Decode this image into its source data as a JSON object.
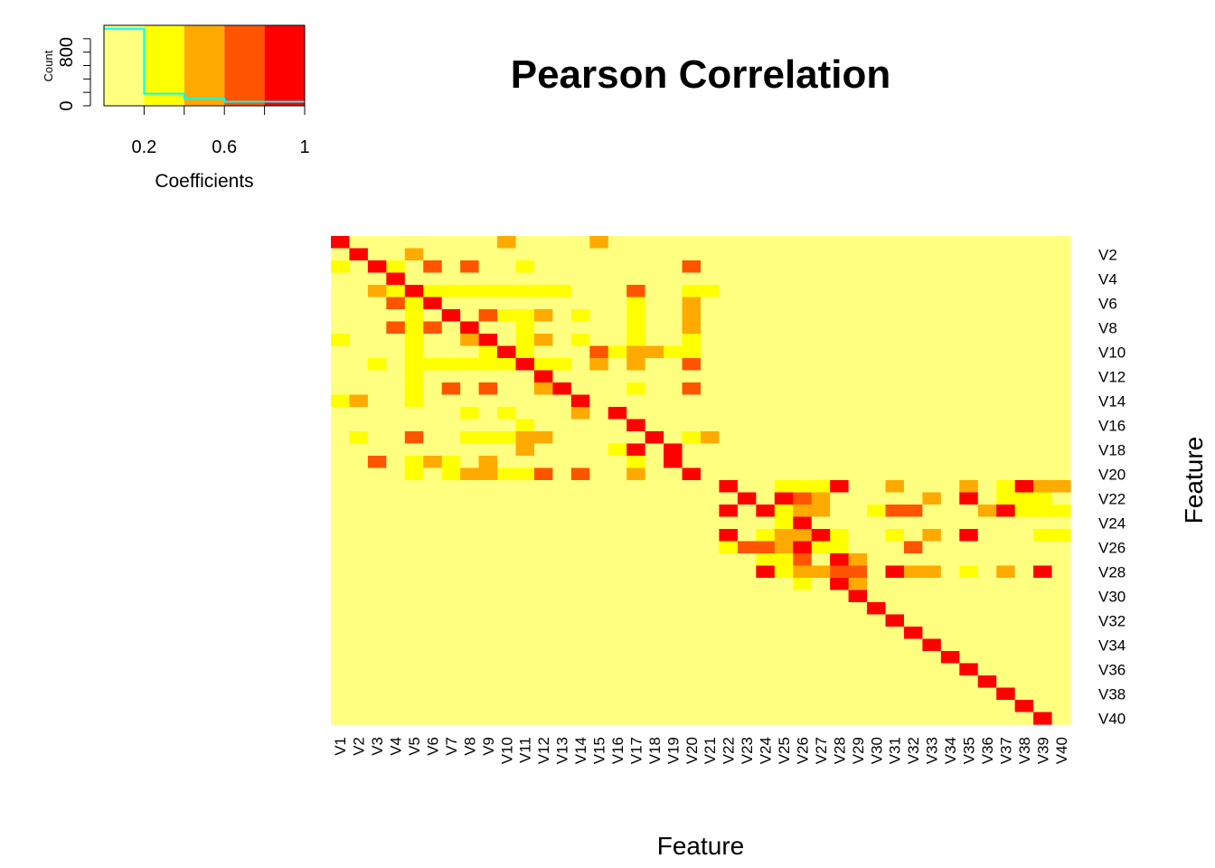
{
  "chart_data": {
    "type": "heatmap",
    "title": "Pearson Correlation",
    "xlabel": "Feature",
    "ylabel": "Feature",
    "rows": [
      "V1",
      "V2",
      "V3",
      "V4",
      "V5",
      "V6",
      "V7",
      "V8",
      "V9",
      "V10",
      "V11",
      "V12",
      "V13",
      "V14",
      "V15",
      "V16",
      "V17",
      "V18",
      "V19",
      "V20",
      "V21",
      "V22",
      "V23",
      "V24",
      "V25",
      "V26",
      "V27",
      "V28",
      "V29",
      "V30",
      "V31",
      "V32",
      "V33",
      "V34",
      "V35",
      "V36",
      "V37",
      "V38",
      "V39",
      "V40"
    ],
    "columns": [
      "V1",
      "V2",
      "V3",
      "V4",
      "V5",
      "V6",
      "V7",
      "V8",
      "V9",
      "V10",
      "V11",
      "V12",
      "V13",
      "V14",
      "V15",
      "V16",
      "V17",
      "V18",
      "V19",
      "V20",
      "V21",
      "V22",
      "V23",
      "V24",
      "V25",
      "V26",
      "V27",
      "V28",
      "V29",
      "V30",
      "V31",
      "V32",
      "V33",
      "V34",
      "V35",
      "V36",
      "V37",
      "V38",
      "V39",
      "V40"
    ],
    "row_tick_labels": [
      "V2",
      "V4",
      "V6",
      "V8",
      "V10",
      "V12",
      "V14",
      "V16",
      "V18",
      "V20",
      "V22",
      "V24",
      "V26",
      "V28",
      "V30",
      "V32",
      "V34",
      "V36",
      "V38",
      "V40"
    ],
    "color_bins": [
      0,
      0.2,
      0.4,
      0.6,
      0.8,
      1
    ],
    "colors": [
      "#FFFF80",
      "#FFFF00",
      "#FFAA00",
      "#FF5500",
      "#FF0000"
    ],
    "matrix_levels": [
      "4000000002000020000000000000000000000000",
      "0400200000000000000000000000000000000000",
      "1041030300100000000300000000000000000000",
      "0004000000000000000000000000000000000000",
      "0021411111111000300110000000000000000000",
      "0003140000000000100200000000000000000000",
      "0000104031120100100200000000000000000000",
      "0003130400100000100200000000000000000000",
      "1000100240120100100100000000000000000000",
      "0000100014100031221100000000000000000000",
      "0010111111411020200300000000000000000000",
      "0000100000040000000000000000000000000000",
      "0000103030024000100300000000000000000000",
      "1200100000000400000000000000000000000000",
      "0000000101000204000000000000000000000000",
      "0000000000100000400000000000000000000000",
      "0100300111220000040120000000000000000000",
      "0000000000200001404000000000000000000000",
      "0030121020000000104000000000000000000000",
      "0000101221130300200400000000000000000000",
      "0000000000000000000004001114002000201422",
      "0000000000000000000000404320000020401110",
      "0000000000000000000004041220013300024111",
      "0000000000000000000000001400000000000000",
      "0000000000000000000004012241001020400011",
      "0000000000000000000001332411000300000000",
      "0000000000000000000000011304200000000000",
      "0000000000000000000000041223304220102040",
      "0000000000000000000000000104200000000000",
      "0000000000000000000000000000400000000000",
      "0000000000000000000000000000040000000000",
      "0000000000000000000000000000004000000000",
      "0000000000000000000000000000000400000000",
      "0000000000000000000000000000000040000000",
      "0000000000000000000000000000000004000000",
      "0000000000000000000000000000000000400000",
      "0000000000000000000000000000000000040000",
      "0000000000000000000000000000000000004000",
      "0000000000000000000000000000000000000400",
      "0000000000000000000000000000000000000040"
    ],
    "key": {
      "xlabel": "Coefficients",
      "ylabel": "Count",
      "x_ticks": [
        "0.2",
        "0.6",
        "1"
      ],
      "y_ticks": [
        "0",
        "800"
      ],
      "histogram_line_color": "#00FFFF",
      "histogram_counts": [
        1150,
        180,
        110,
        60,
        60
      ]
    }
  }
}
